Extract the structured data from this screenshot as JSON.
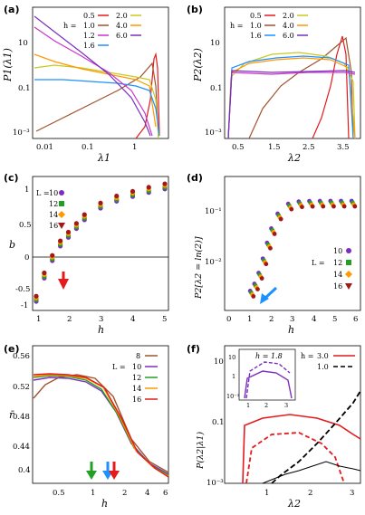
{
  "panels": {
    "a": {
      "tag": "(a)",
      "ylabel": "P1(λ1)",
      "xlabel": "λ1",
      "xticks": [
        "0.01",
        "0.1",
        "1"
      ],
      "yticks": [
        "10",
        "0.1",
        "10⁻³"
      ],
      "legend_h": "h =",
      "legend": [
        "0.5",
        "1.0",
        "1.2",
        "1.6",
        "2.0",
        "4.0",
        "6.0"
      ]
    },
    "b": {
      "tag": "(b)",
      "ylabel": "P2(λ2)",
      "xlabel": "λ2",
      "xticks": [
        "0.5",
        "1.5",
        "2.5",
        "3.5"
      ],
      "yticks": [
        "10",
        "0.1",
        "10⁻³"
      ],
      "legend_h": "h =",
      "legend": [
        "0.5",
        "1.0",
        "1.6",
        "2.0",
        "4.0",
        "6.0"
      ]
    },
    "c": {
      "tag": "(c)",
      "ylabel": "b",
      "xlabel": "h",
      "xticks": [
        "1",
        "2",
        "3",
        "4",
        "5"
      ],
      "yticks": [
        "1",
        "0.5",
        "0",
        "-0.5",
        "-1"
      ],
      "legend_L": "L =",
      "legend": [
        "10",
        "12",
        "14",
        "16"
      ]
    },
    "d": {
      "tag": "(d)",
      "ylabel": "P2[λ2 = ln(2)]",
      "xlabel": "h",
      "xticks": [
        "0",
        "1",
        "2",
        "3",
        "4",
        "5",
        "6"
      ],
      "yticks": [
        "10⁻¹",
        "10⁻²"
      ],
      "legend_L": "L =",
      "legend": [
        "10",
        "12",
        "14",
        "16"
      ]
    },
    "e": {
      "tag": "(e)",
      "ylabel": "r̄",
      "xlabel": "h",
      "xticks": [
        "0.5",
        "1",
        "2",
        "4",
        "6"
      ],
      "yticks": [
        "0.56",
        "0.52",
        "0.48",
        "0.44",
        "0.4"
      ],
      "legend_L": "L =",
      "legend": [
        "8",
        "10",
        "12",
        "14",
        "16"
      ]
    },
    "f": {
      "tag": "(f)",
      "ylabel": "P(λ2|λ1)",
      "xlabel": "λ2",
      "xticks": [
        "1",
        "2",
        "3"
      ],
      "yticks": [
        "10",
        "0.1",
        "10⁻³"
      ],
      "legend_h": "h =",
      "legend": [
        "3.0",
        "1.0"
      ],
      "inset_label": "h = 1.8",
      "inset_xticks": [
        "1",
        "2",
        "3"
      ],
      "inset_yticks": [
        "10",
        "1",
        "10⁻³"
      ]
    }
  },
  "colors": {
    "red": "#e41a1c",
    "brown": "#a0522d",
    "yellow": "#c8c820",
    "orange": "#ff9900",
    "cyan": "#1e90ff",
    "magenta": "#cc33cc",
    "green": "#22a022",
    "purple": "#7b2fbf",
    "black": "#000000",
    "darkorange": "#f08020"
  },
  "chart_data": [
    {
      "type": "line",
      "panel": "c",
      "series": [
        {
          "name": "L=10",
          "x": [
            1,
            1.25,
            1.5,
            1.75,
            2,
            2.25,
            2.5,
            3,
            3.5,
            4,
            4.5,
            5
          ],
          "values": [
            -1.0,
            -0.6,
            -0.3,
            -0.05,
            0.1,
            0.25,
            0.4,
            0.6,
            0.72,
            0.8,
            0.87,
            0.93
          ]
        }
      ],
      "xlim": [
        1,
        5
      ],
      "ylim": [
        -1.2,
        1.1
      ]
    },
    {
      "type": "scatter",
      "panel": "e",
      "series": [
        {
          "name": "L=16",
          "x": [
            0.3,
            0.5,
            0.7,
            1,
            1.3,
            1.6,
            2,
            3,
            4,
            5,
            6
          ],
          "values": [
            0.532,
            0.531,
            0.528,
            0.52,
            0.5,
            0.47,
            0.44,
            0.41,
            0.4,
            0.395,
            0.39
          ]
        }
      ]
    }
  ]
}
